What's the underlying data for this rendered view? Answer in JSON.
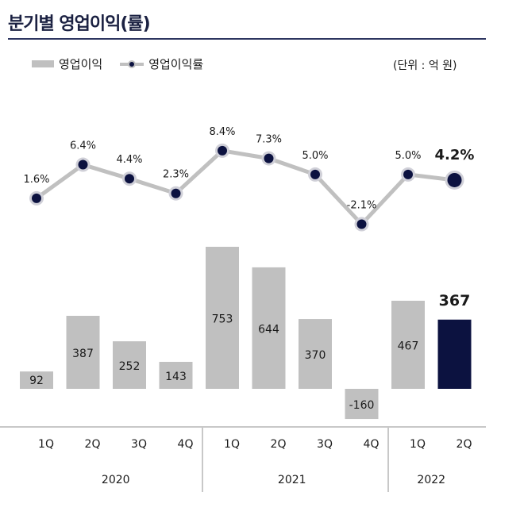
{
  "title": "분기별 영업이익(률)",
  "unit": "(단위 : 억 원)",
  "chart_data": {
    "type": "bar+line",
    "categories": [
      "1Q",
      "2Q",
      "3Q",
      "4Q",
      "1Q",
      "2Q",
      "3Q",
      "4Q",
      "1Q",
      "2Q"
    ],
    "groups": [
      {
        "label": "2020",
        "count": 4
      },
      {
        "label": "2021",
        "count": 4
      },
      {
        "label": "2022",
        "count": 2
      }
    ],
    "series": [
      {
        "name": "영업이익",
        "type": "bar",
        "values": [
          92,
          387,
          252,
          143,
          753,
          644,
          370,
          -160,
          467,
          367
        ],
        "labels": [
          "92",
          "387",
          "252",
          "143",
          "753",
          "644",
          "370",
          "-160",
          "467",
          "367"
        ],
        "color": "#c0c0c0",
        "highlight_color": "#0c1240"
      },
      {
        "name": "영업이익률",
        "type": "line",
        "values": [
          1.6,
          6.4,
          4.4,
          2.3,
          8.4,
          7.3,
          5.0,
          -2.1,
          5.0,
          4.2
        ],
        "labels": [
          "1.6%",
          "6.4%",
          "4.4%",
          "2.3%",
          "8.4%",
          "7.3%",
          "5.0%",
          "-2.1%",
          "5.0%",
          "4.2%"
        ],
        "color": "#c0c0c0",
        "marker_color": "#0c1240"
      }
    ],
    "highlight_index": 9
  }
}
